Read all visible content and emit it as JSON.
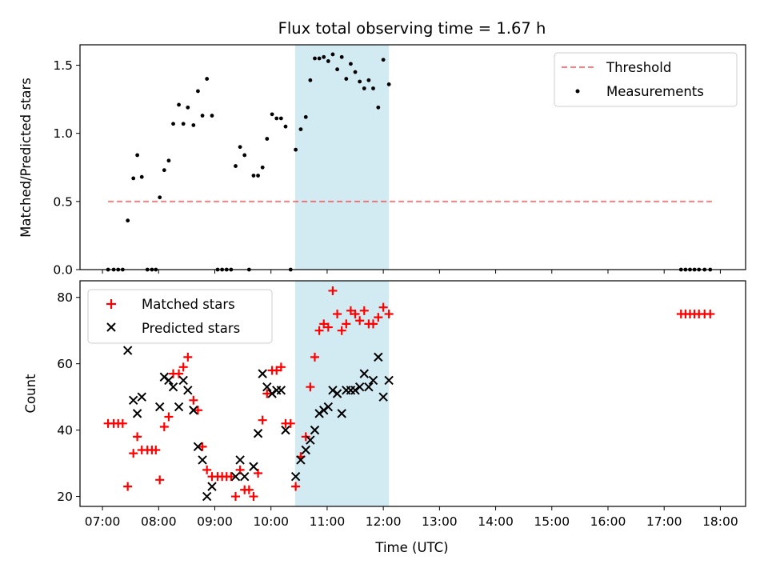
{
  "chart_data": {
    "title": "Flux total observing time = 1.67 h",
    "xlabel": "Time (UTC)",
    "x_unit": "hours UTC",
    "xlim": [
      6.6,
      18.45
    ],
    "x_ticks": [
      7,
      8,
      9,
      10,
      11,
      12,
      13,
      14,
      15,
      16,
      17,
      18
    ],
    "x_tick_labels": [
      "07:00",
      "08:00",
      "09:00",
      "10:00",
      "11:00",
      "12:00",
      "13:00",
      "14:00",
      "15:00",
      "16:00",
      "17:00",
      "18:00"
    ],
    "highlight_span": [
      10.43,
      12.1
    ],
    "highlight_color": "#add8e6",
    "panels": [
      {
        "type": "scatter",
        "ylabel": "Matched/Predicted stars",
        "ylim": [
          0,
          1.65
        ],
        "y_ticks": [
          0.0,
          0.5,
          1.0,
          1.5
        ],
        "y_tick_labels": [
          "0.0",
          "0.5",
          "1.0",
          "1.5"
        ],
        "legend_position": "top-right",
        "threshold": {
          "name": "Threshold",
          "y": 0.5,
          "x_range": [
            7.1,
            17.85
          ],
          "color": "#ff0000",
          "style": "dashed"
        },
        "series": [
          {
            "name": "Measurements",
            "color": "#000000",
            "marker": "dot",
            "points": [
              [
                7.1,
                0
              ],
              [
                7.2,
                0
              ],
              [
                7.28,
                0
              ],
              [
                7.36,
                0
              ],
              [
                7.45,
                0.36
              ],
              [
                7.55,
                0.67
              ],
              [
                7.62,
                0.84
              ],
              [
                7.7,
                0.68
              ],
              [
                7.8,
                0
              ],
              [
                7.88,
                0
              ],
              [
                7.95,
                0
              ],
              [
                8.02,
                0.53
              ],
              [
                8.1,
                0.73
              ],
              [
                8.18,
                0.8
              ],
              [
                8.26,
                1.07
              ],
              [
                8.36,
                1.21
              ],
              [
                8.44,
                1.07
              ],
              [
                8.52,
                1.19
              ],
              [
                8.62,
                1.06
              ],
              [
                8.7,
                1.31
              ],
              [
                8.78,
                1.13
              ],
              [
                8.86,
                1.4
              ],
              [
                8.95,
                1.13
              ],
              [
                9.05,
                0
              ],
              [
                9.13,
                0
              ],
              [
                9.21,
                0
              ],
              [
                9.29,
                0
              ],
              [
                9.37,
                0.76
              ],
              [
                9.45,
                0.9
              ],
              [
                9.53,
                0.84
              ],
              [
                9.61,
                0
              ],
              [
                9.69,
                0.69
              ],
              [
                9.77,
                0.69
              ],
              [
                9.85,
                0.75
              ],
              [
                9.93,
                0.96
              ],
              [
                10.02,
                1.14
              ],
              [
                10.1,
                1.11
              ],
              [
                10.18,
                1.11
              ],
              [
                10.26,
                1.05
              ],
              [
                10.35,
                0
              ],
              [
                10.44,
                0.88
              ],
              [
                10.53,
                1.03
              ],
              [
                10.62,
                1.12
              ],
              [
                10.7,
                1.39
              ],
              [
                10.78,
                1.55
              ],
              [
                10.86,
                1.55
              ],
              [
                10.94,
                1.56
              ],
              [
                11.02,
                1.53
              ],
              [
                11.1,
                1.58
              ],
              [
                11.18,
                1.47
              ],
              [
                11.26,
                1.56
              ],
              [
                11.34,
                1.4
              ],
              [
                11.42,
                1.51
              ],
              [
                11.5,
                1.45
              ],
              [
                11.58,
                1.38
              ],
              [
                11.66,
                1.33
              ],
              [
                11.74,
                1.39
              ],
              [
                11.82,
                1.33
              ],
              [
                11.91,
                1.19
              ],
              [
                12.0,
                1.54
              ],
              [
                12.1,
                1.36
              ],
              [
                17.3,
                0
              ],
              [
                17.38,
                0
              ],
              [
                17.46,
                0
              ],
              [
                17.54,
                0
              ],
              [
                17.62,
                0
              ],
              [
                17.72,
                0
              ],
              [
                17.82,
                0
              ]
            ]
          }
        ]
      },
      {
        "type": "scatter",
        "ylabel": "Count",
        "ylim": [
          17,
          85
        ],
        "y_ticks": [
          20,
          40,
          60,
          80
        ],
        "y_tick_labels": [
          "20",
          "40",
          "60",
          "80"
        ],
        "legend_position": "top-left",
        "series": [
          {
            "name": "Matched stars",
            "color": "#ff0000",
            "marker": "plus",
            "points": [
              [
                7.1,
                42
              ],
              [
                7.2,
                42
              ],
              [
                7.28,
                42
              ],
              [
                7.36,
                42
              ],
              [
                7.45,
                23
              ],
              [
                7.55,
                33
              ],
              [
                7.62,
                38
              ],
              [
                7.7,
                34
              ],
              [
                7.8,
                34
              ],
              [
                7.88,
                34
              ],
              [
                7.95,
                34
              ],
              [
                8.02,
                25
              ],
              [
                8.1,
                41
              ],
              [
                8.18,
                44
              ],
              [
                8.26,
                57
              ],
              [
                8.36,
                57
              ],
              [
                8.44,
                59
              ],
              [
                8.52,
                62
              ],
              [
                8.62,
                49
              ],
              [
                8.7,
                46
              ],
              [
                8.78,
                35
              ],
              [
                8.86,
                28
              ],
              [
                8.95,
                26
              ],
              [
                9.05,
                26
              ],
              [
                9.13,
                26
              ],
              [
                9.21,
                26
              ],
              [
                9.29,
                26
              ],
              [
                9.37,
                20
              ],
              [
                9.45,
                28
              ],
              [
                9.53,
                22
              ],
              [
                9.61,
                22
              ],
              [
                9.69,
                20
              ],
              [
                9.77,
                27
              ],
              [
                9.85,
                43
              ],
              [
                9.93,
                51
              ],
              [
                10.02,
                58
              ],
              [
                10.1,
                58
              ],
              [
                10.18,
                59
              ],
              [
                10.26,
                42
              ],
              [
                10.35,
                42
              ],
              [
                10.44,
                23
              ],
              [
                10.53,
                32
              ],
              [
                10.62,
                38
              ],
              [
                10.7,
                53
              ],
              [
                10.78,
                62
              ],
              [
                10.86,
                70
              ],
              [
                10.94,
                72
              ],
              [
                11.02,
                71
              ],
              [
                11.1,
                82
              ],
              [
                11.18,
                75
              ],
              [
                11.26,
                70
              ],
              [
                11.34,
                72
              ],
              [
                11.42,
                76
              ],
              [
                11.5,
                75
              ],
              [
                11.58,
                73
              ],
              [
                11.66,
                76
              ],
              [
                11.74,
                72
              ],
              [
                11.82,
                72
              ],
              [
                11.91,
                74
              ],
              [
                12.0,
                77
              ],
              [
                12.1,
                75
              ],
              [
                17.3,
                75
              ],
              [
                17.38,
                75
              ],
              [
                17.46,
                75
              ],
              [
                17.54,
                75
              ],
              [
                17.62,
                75
              ],
              [
                17.72,
                75
              ],
              [
                17.82,
                75
              ]
            ]
          },
          {
            "name": "Predicted stars",
            "color": "#000000",
            "marker": "x",
            "points": [
              [
                7.45,
                64
              ],
              [
                7.55,
                49
              ],
              [
                7.62,
                45
              ],
              [
                7.7,
                50
              ],
              [
                8.02,
                47
              ],
              [
                8.1,
                56
              ],
              [
                8.18,
                55
              ],
              [
                8.26,
                53
              ],
              [
                8.36,
                47
              ],
              [
                8.44,
                55
              ],
              [
                8.52,
                52
              ],
              [
                8.62,
                46
              ],
              [
                8.7,
                35
              ],
              [
                8.78,
                31
              ],
              [
                8.86,
                20
              ],
              [
                8.95,
                23
              ],
              [
                9.37,
                26
              ],
              [
                9.45,
                31
              ],
              [
                9.53,
                26
              ],
              [
                9.69,
                29
              ],
              [
                9.77,
                39
              ],
              [
                9.85,
                57
              ],
              [
                9.93,
                53
              ],
              [
                10.02,
                51
              ],
              [
                10.1,
                52
              ],
              [
                10.18,
                52
              ],
              [
                10.26,
                40
              ],
              [
                10.44,
                26
              ],
              [
                10.53,
                31
              ],
              [
                10.62,
                34
              ],
              [
                10.7,
                37
              ],
              [
                10.78,
                40
              ],
              [
                10.86,
                45
              ],
              [
                10.94,
                46
              ],
              [
                11.02,
                47
              ],
              [
                11.1,
                52
              ],
              [
                11.18,
                51
              ],
              [
                11.26,
                45
              ],
              [
                11.34,
                52
              ],
              [
                11.42,
                52
              ],
              [
                11.5,
                52
              ],
              [
                11.58,
                53
              ],
              [
                11.66,
                57
              ],
              [
                11.74,
                53
              ],
              [
                11.82,
                55
              ],
              [
                11.91,
                62
              ],
              [
                12.0,
                50
              ],
              [
                12.1,
                55
              ]
            ]
          }
        ]
      }
    ]
  }
}
